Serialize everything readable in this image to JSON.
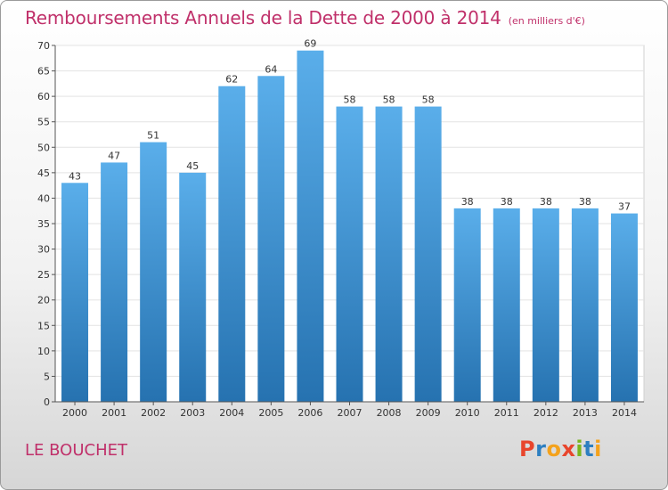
{
  "header": {
    "title": "Remboursements Annuels de la Dette de 2000 à 2014",
    "unit": "(en milliers d'€)"
  },
  "footer": {
    "commune": "LE BOUCHET",
    "brand": "Proxiti",
    "brand_colors": [
      "#e8452c",
      "#2d7fc1",
      "#f4a21c",
      "#e8452c",
      "#7ab51d",
      "#2d7fc1",
      "#f4a21c"
    ]
  },
  "chart_data": {
    "type": "bar",
    "title": "Remboursements Annuels de la Dette de 2000 à 2014",
    "xlabel": "",
    "ylabel": "",
    "categories": [
      "2000",
      "2001",
      "2002",
      "2003",
      "2004",
      "2005",
      "2006",
      "2007",
      "2008",
      "2009",
      "2010",
      "2011",
      "2012",
      "2013",
      "2014"
    ],
    "values": [
      43,
      47,
      51,
      45,
      62,
      64,
      69,
      58,
      58,
      58,
      38,
      38,
      38,
      38,
      37
    ],
    "ylim": [
      0,
      70
    ],
    "yticks": [
      0,
      5,
      10,
      15,
      20,
      25,
      30,
      35,
      40,
      45,
      50,
      55,
      60,
      65,
      70
    ],
    "grid": true,
    "bar_color_top": "#5aaeea",
    "bar_color_bottom": "#2672b0",
    "label_color": "#333333"
  }
}
